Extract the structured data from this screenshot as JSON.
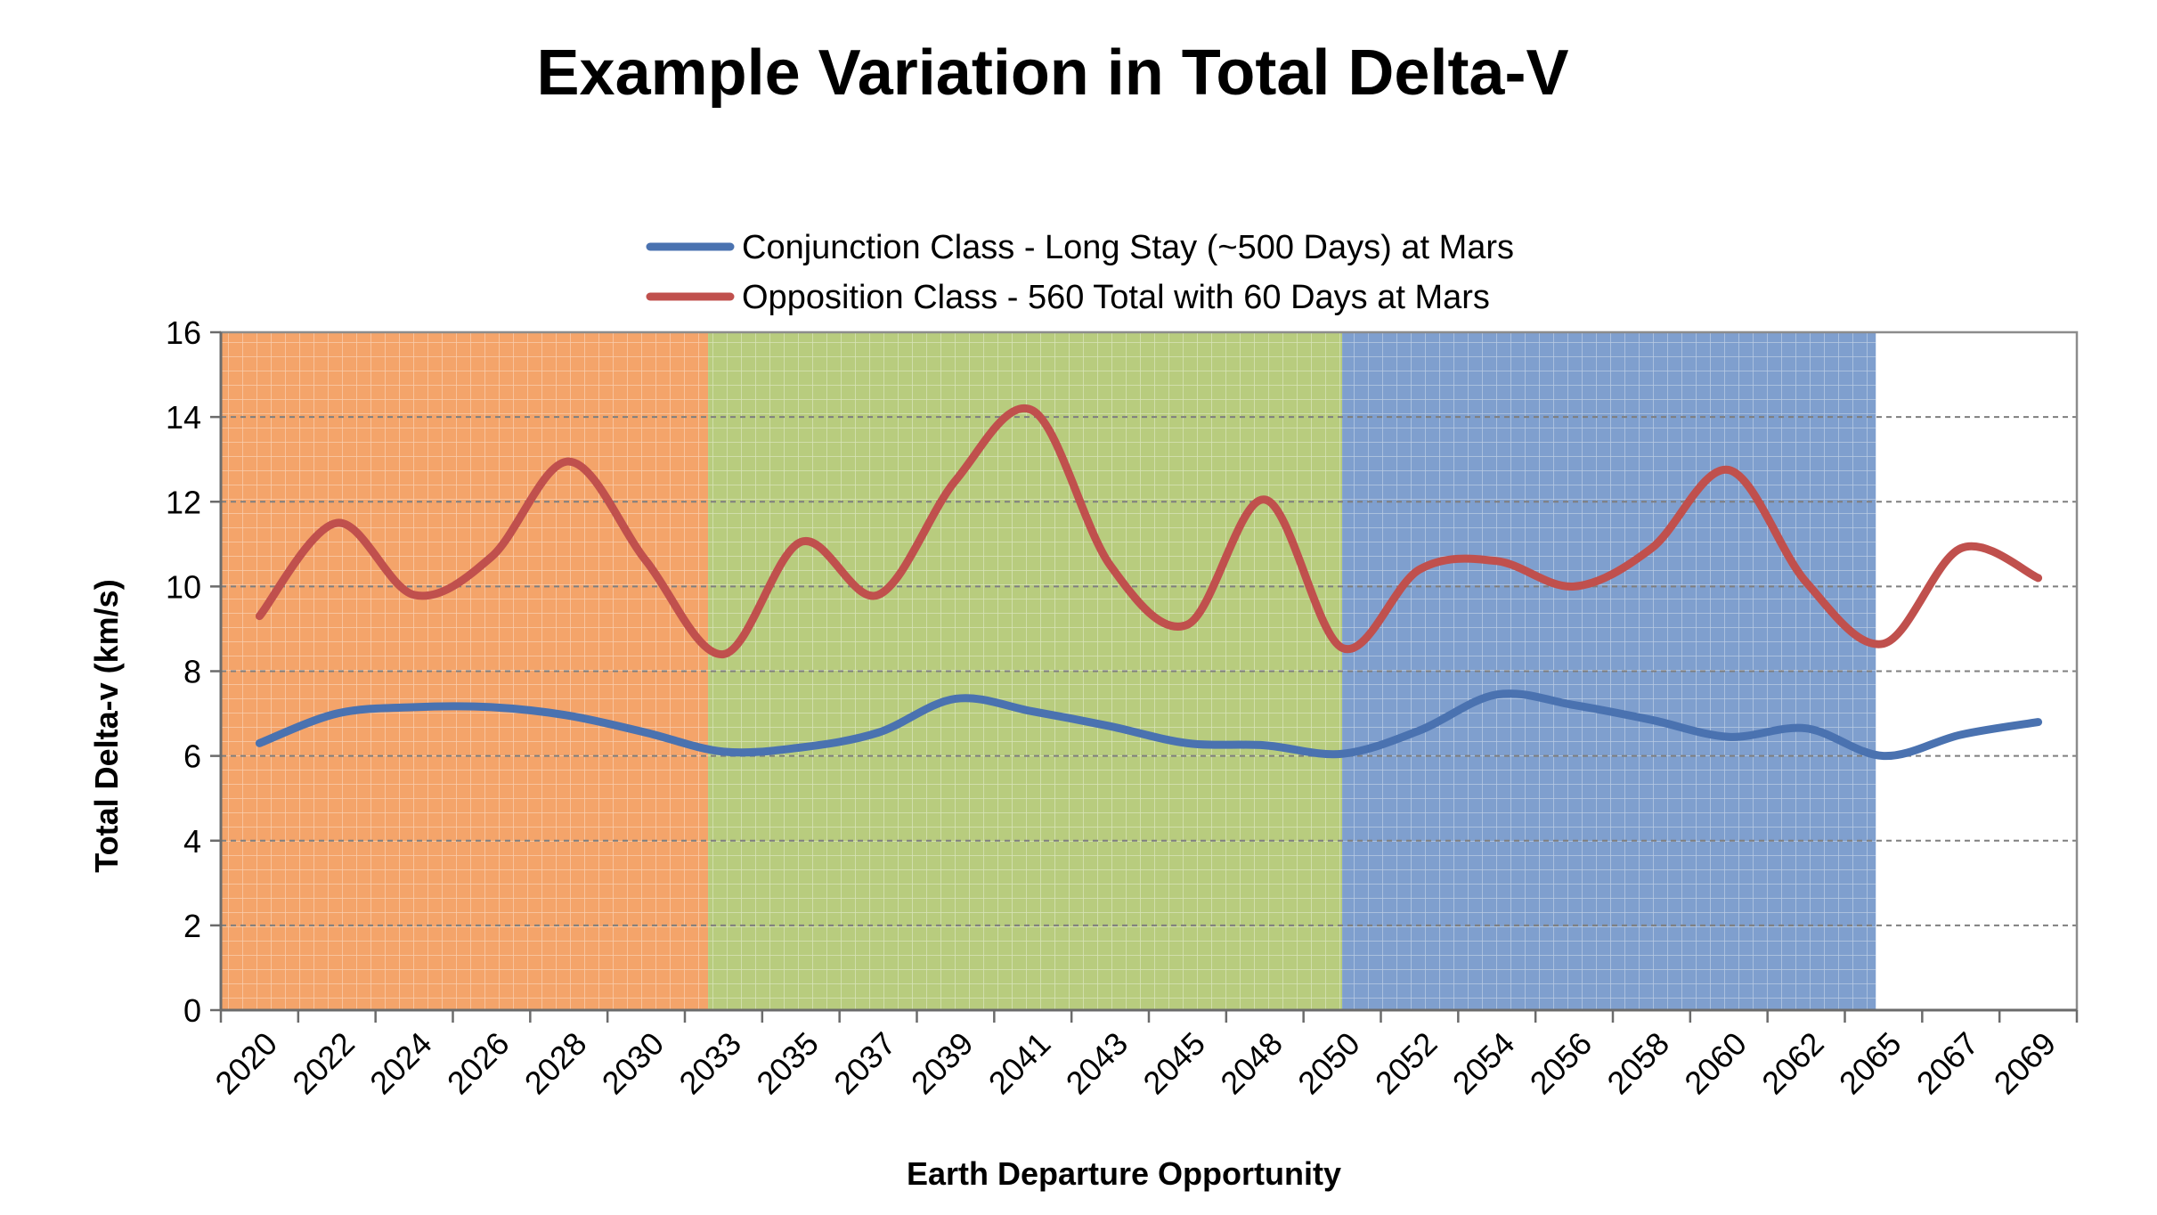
{
  "chart_data": {
    "type": "line",
    "title": "Example Variation in Total Delta-V",
    "xlabel": "Earth Departure Opportunity",
    "ylabel": "Total Delta-v (km/s)",
    "ylim": [
      0,
      16
    ],
    "yticks": [
      "0",
      "2",
      "4",
      "6",
      "8",
      "10",
      "12",
      "14",
      "16"
    ],
    "grid": "horizontal dashed",
    "legend_position": "top-center",
    "categories": [
      "2020",
      "2022",
      "2024",
      "2026",
      "2028",
      "2030",
      "2033",
      "2035",
      "2037",
      "2039",
      "2041",
      "2043",
      "2045",
      "2048",
      "2050",
      "2052",
      "2054",
      "2056",
      "2058",
      "2060",
      "2062",
      "2065",
      "2067",
      "2069"
    ],
    "x_ticks_shown": [
      "2020",
      "2022",
      "2024",
      "2026",
      "2028",
      "2030",
      "2033",
      "2035",
      "2037",
      "2039",
      "2041",
      "2043",
      "2045",
      "2048",
      "2050",
      "2052",
      "2054",
      "2056",
      "2058",
      "2060",
      "2062",
      "2065",
      "2067",
      "2069"
    ],
    "series": [
      {
        "name": "Conjunction Class - Long Stay (~500 Days) at Mars",
        "color": "#4a72b0",
        "values": [
          6.3,
          7.0,
          7.15,
          7.15,
          6.95,
          6.55,
          6.1,
          6.2,
          6.55,
          7.35,
          7.05,
          6.7,
          6.3,
          6.25,
          6.05,
          6.6,
          7.45,
          7.2,
          6.85,
          6.45,
          6.65,
          6.0,
          6.5,
          6.8
        ]
      },
      {
        "name": "Opposition Class - 560 Total with 60 Days at Mars",
        "color": "#c0504d",
        "values": [
          9.3,
          11.5,
          9.8,
          10.7,
          12.95,
          10.6,
          8.4,
          11.05,
          9.8,
          12.5,
          14.15,
          10.5,
          9.1,
          12.05,
          8.55,
          10.4,
          10.6,
          10.0,
          10.9,
          12.75,
          10.1,
          8.65,
          10.9,
          10.2
        ]
      }
    ],
    "bands": [
      {
        "from": 0,
        "to": 6.3,
        "color": "#f4a46a"
      },
      {
        "from": 6.3,
        "to": 14.5,
        "color": "#b8cc7e"
      },
      {
        "from": 14.5,
        "to": 21.4,
        "color": "#7f9fce"
      }
    ]
  }
}
